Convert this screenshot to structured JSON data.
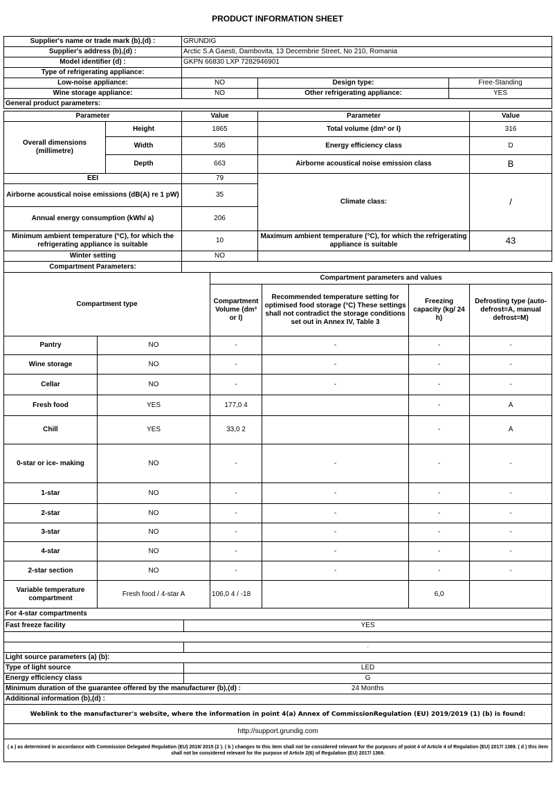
{
  "title": "PRODUCT INFORMATION SHEET",
  "supplier": {
    "name_label": "Supplier's name or trade mark (b),(d) :",
    "name": "GRUNDIG",
    "address_label": "Supplier's address (b),(d) :",
    "address": "Arctic S.A  Gaesti, Dambovita, 13 Decembrie Street, No 210, Romania",
    "model_label": "Model identifier (d) :",
    "model": "GKPN 66830 LXP 7282946901"
  },
  "type": {
    "label": "Type of refrigerating appliance:",
    "low_noise_label": "Low-noise appliance:",
    "low_noise": "NO",
    "design_label": "Design type:",
    "design": "Free-Standing",
    "wine_label": "Wine storage appliance:",
    "wine": "NO",
    "other_label": "Other refrigerating appliance:",
    "other": "YES"
  },
  "general": {
    "label": "General product parameters:",
    "h_param": "Parameter",
    "h_value": "Value",
    "dims_label": "Overall dimensions (millimetre)",
    "height_label": "Height",
    "height": "1865",
    "width_label": "Width",
    "width": "595",
    "depth_label": "Depth",
    "depth": "663",
    "total_volume_label": "Total volume (dm³ or l)",
    "total_volume": "316",
    "ee_class_label": "Energy efficiency class",
    "ee_class": "D",
    "noise_class_label": "Airborne acoustical noise emission class",
    "noise_class": "B",
    "eei_label": "EEI",
    "eei": "79",
    "noise_label": "Airborne acoustical noise emissions (dB(A) re 1 pW)",
    "noise": "35",
    "annual_label": "Annual energy consumption (kWh/ a)",
    "annual": "206",
    "climate_label": "Climate class:",
    "climate": "/",
    "min_temp_label": "Minimum ambient temperature (°C), for which the refrigerating appliance is suitable",
    "min_temp": "10",
    "max_temp_label": "Maximum ambient temperature (°C), for which the refrigerating appliance is suitable",
    "max_temp": "43",
    "winter_label": "Winter setting",
    "winter": "NO"
  },
  "compartments": {
    "label": "Compartment Parameters:",
    "group_header": "Compartment parameters and values",
    "type_header": "Compartment type",
    "volume_header": "Compartment Volume (dm³ or l)",
    "temp_header": "Recommended temperature setting for optimised food storage (°C) These settings shall not contradict the storage conditions set out in Annex IV, Table 3",
    "freezing_header": "Freezing capacity (kg/ 24 h)",
    "defrost_header": "Defrosting type (auto-defrost=A, manual defrost=M)",
    "rows": [
      {
        "name": "Pantry",
        "present": "NO",
        "volume": "-",
        "temp": "-",
        "freezing": "-",
        "defrost": "-"
      },
      {
        "name": "Wine storage",
        "present": "NO",
        "volume": "-",
        "temp": "-",
        "freezing": "-",
        "defrost": "-"
      },
      {
        "name": "Cellar",
        "present": "NO",
        "volume": "-",
        "temp": "-",
        "freezing": "-",
        "defrost": "-"
      },
      {
        "name": "Fresh food",
        "present": "YES",
        "volume": "177,0 4",
        "temp": "",
        "freezing": "-",
        "defrost": "A"
      },
      {
        "name": "Chill",
        "present": "YES",
        "volume": "33,0 2",
        "temp": "",
        "freezing": "-",
        "defrost": "A"
      },
      {
        "name": "0-star or ice- making",
        "present": "NO",
        "volume": "-",
        "temp": "-",
        "freezing": "-",
        "defrost": "-"
      },
      {
        "name": "1-star",
        "present": "NO",
        "volume": "-",
        "temp": "-",
        "freezing": "-",
        "defrost": "-"
      },
      {
        "name": "2-star",
        "present": "NO",
        "volume": "-",
        "temp": "-",
        "freezing": "-",
        "defrost": "-"
      },
      {
        "name": "3-star",
        "present": "NO",
        "volume": "-",
        "temp": "-",
        "freezing": "-",
        "defrost": "-"
      },
      {
        "name": "4-star",
        "present": "NO",
        "volume": "-",
        "temp": "-",
        "freezing": "-",
        "defrost": "-"
      },
      {
        "name": "2-star section",
        "present": "NO",
        "volume": "-",
        "temp": "-",
        "freezing": "-",
        "defrost": "-"
      },
      {
        "name": "Variable temperature compartment",
        "present": "Fresh food / 4-star A",
        "volume": "106,0 4 / -18",
        "temp": "",
        "freezing": "6,0",
        "defrost": ""
      }
    ]
  },
  "four_star": {
    "label": "For 4-star compartments",
    "fast_freeze_label": "Fast freeze facility",
    "fast_freeze": "YES",
    "blank_value": "-"
  },
  "light": {
    "label": "Light source parameters (a) (b):",
    "type_label": "Type of light source",
    "type": "LED",
    "ee_label": "Energy efficiency class",
    "ee": "G"
  },
  "guarantee": {
    "label": "Minimum duration of the guarantee offered by the manufacturer (b),(d) :",
    "value": "24 Months"
  },
  "additional": {
    "label": "Additional information (b),(d) :",
    "weblink_label": "Weblink to the manufacturer's website, where the information in point 4(a) Annex of CommissionRegulation (EU) 2019/2019 (1) (b) is found:",
    "url": "http://support.grundig.com"
  },
  "footnote": "( a ) as determined in accordance with Commission Delegated Regulation (EU) 2019/ 2015 (2 ). ( b ) changes to this item shall not be considered relevant for the purposes of point 4 of Article 4 of Regulation (EU) 2017/ 1369. ( d ) this item shall not be considered relevant for the purpose of Article 2(6) of Regulation (EU) 2017/ 1369."
}
